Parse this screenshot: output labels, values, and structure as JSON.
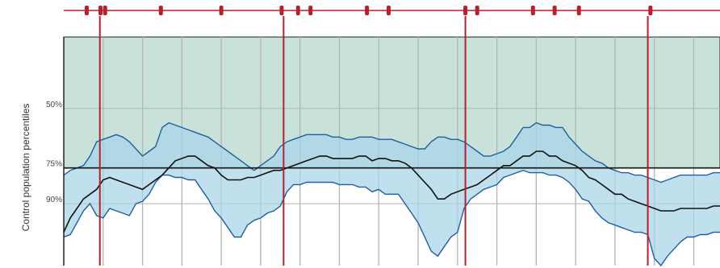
{
  "chart_data": {
    "type": "area",
    "ylabel": "Control population percentiles",
    "y_tick_labels": [
      {
        "label": "50%",
        "level": 50
      },
      {
        "label": "75%",
        "level": 75
      },
      {
        "label": "90%",
        "level": 90
      }
    ],
    "x_range": [
      0,
      100
    ],
    "y_range": [
      20,
      116
    ],
    "reference_level": 75,
    "band_color": "#a8d4e8",
    "line_color": "#111111",
    "edge_color": "#1f5f9e",
    "shade_color": "#c8e2da",
    "event_color": "#b5202a",
    "day_markers_x": [
      5.5,
      33.5,
      61.2,
      89.0
    ],
    "event_ticks_x": [
      3.5,
      5.6,
      6.3,
      14.8,
      24.0,
      33.2,
      35.7,
      37.6,
      46.2,
      49.5,
      61.2,
      63.0,
      71.5,
      74.8,
      78.5,
      89.4
    ],
    "x": [
      0,
      1,
      2,
      3,
      4,
      5,
      6,
      7,
      8,
      9,
      10,
      11,
      12,
      13,
      14,
      15,
      16,
      17,
      18,
      19,
      20,
      21,
      22,
      23,
      24,
      25,
      26,
      27,
      28,
      29,
      30,
      31,
      32,
      33,
      34,
      35,
      36,
      37,
      38,
      39,
      40,
      41,
      42,
      43,
      44,
      45,
      46,
      47,
      48,
      49,
      50,
      51,
      52,
      53,
      54,
      55,
      56,
      57,
      58,
      59,
      60,
      61,
      62,
      63,
      64,
      65,
      66,
      67,
      68,
      69,
      70,
      71,
      72,
      73,
      74,
      75,
      76,
      77,
      78,
      79,
      80,
      81,
      82,
      83,
      84,
      85,
      86,
      87,
      88,
      89,
      90,
      91,
      92,
      93,
      94,
      95,
      96,
      97,
      98,
      99,
      100
    ],
    "series": [
      {
        "values_upper": [
          78,
          76,
          75,
          74,
          70,
          64,
          63,
          62,
          61,
          62,
          64,
          67,
          70,
          68,
          66,
          58,
          56,
          57,
          58,
          59,
          60,
          61,
          62,
          64,
          66,
          68,
          70,
          72,
          74,
          76,
          74,
          72,
          70,
          66,
          64,
          63,
          62,
          61,
          61,
          61,
          61,
          62,
          62,
          63,
          63,
          62,
          62,
          62,
          63,
          63,
          63,
          64,
          65,
          66,
          67,
          67,
          64,
          62,
          62,
          63,
          63,
          64,
          66,
          68,
          70,
          70,
          69,
          68,
          66,
          62,
          58,
          58,
          56,
          57,
          57,
          58,
          58,
          62,
          65,
          68,
          70,
          72,
          73,
          75,
          76,
          77,
          77,
          78,
          78,
          79,
          80,
          81,
          80,
          79,
          78,
          78,
          78,
          78,
          78,
          77,
          77
        ]
      },
      {
        "values_median": [
          102,
          96,
          92,
          88,
          86,
          84,
          80,
          79,
          80,
          81,
          82,
          83,
          84,
          82,
          80,
          78,
          75,
          72,
          71,
          70,
          70,
          72,
          74,
          75,
          78,
          80,
          80,
          80,
          79,
          79,
          78,
          77,
          76,
          76,
          75,
          74,
          73,
          72,
          71,
          70,
          70,
          71,
          71,
          71,
          71,
          70,
          70,
          72,
          71,
          71,
          72,
          72,
          73,
          75,
          78,
          81,
          84,
          88,
          88,
          86,
          85,
          84,
          83,
          82,
          80,
          78,
          76,
          74,
          74,
          72,
          70,
          70,
          68,
          68,
          70,
          70,
          72,
          73,
          74,
          76,
          79,
          80,
          82,
          84,
          86,
          86,
          88,
          89,
          90,
          91,
          92,
          93,
          93,
          93,
          92,
          92,
          92,
          92,
          92,
          91,
          91
        ]
      },
      {
        "values_lower": [
          104,
          103,
          98,
          93,
          90,
          95,
          96,
          92,
          93,
          94,
          95,
          90,
          89,
          86,
          81,
          78,
          78,
          79,
          79,
          80,
          80,
          84,
          88,
          93,
          96,
          100,
          104,
          104,
          99,
          97,
          96,
          94,
          93,
          91,
          85,
          82,
          82,
          81,
          81,
          81,
          81,
          81,
          82,
          82,
          82,
          83,
          83,
          85,
          84,
          86,
          86,
          86,
          90,
          94,
          98,
          104,
          110,
          112,
          108,
          104,
          102,
          92,
          88,
          86,
          84,
          83,
          82,
          79,
          78,
          77,
          76,
          77,
          77,
          77,
          78,
          78,
          79,
          81,
          84,
          88,
          89,
          93,
          96,
          98,
          99,
          100,
          101,
          102,
          102,
          103,
          113,
          116,
          112,
          109,
          106,
          104,
          104,
          103,
          103,
          102,
          102
        ]
      }
    ]
  }
}
